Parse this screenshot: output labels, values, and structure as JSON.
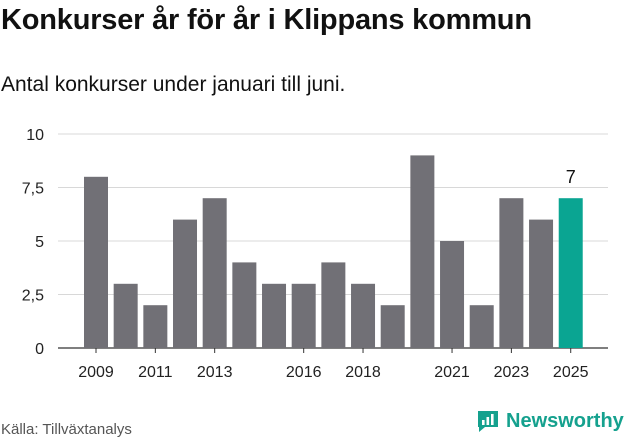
{
  "header": {
    "title": "Konkurser år för år i Klippans kommun",
    "subtitle": "Antal konkurser under januari till juni."
  },
  "footer": {
    "source": "Källa: Tillväxtanalys",
    "brand": "Newsworthy"
  },
  "colors": {
    "bar": "#717076",
    "highlight": "#0aa592",
    "grid": "#d8d8d8",
    "axis": "#333333",
    "brand": "#15a18e"
  },
  "chart_data": {
    "type": "bar",
    "title": "Konkurser år för år i Klippans kommun",
    "subtitle": "Antal konkurser under januari till juni.",
    "categories": [
      "2009",
      "2010",
      "2011",
      "2012",
      "2013",
      "2014",
      "2015",
      "2016",
      "2017",
      "2018",
      "2019",
      "2020",
      "2021",
      "2022",
      "2023",
      "2024",
      "2025"
    ],
    "values": [
      8,
      3,
      2,
      6,
      7,
      4,
      3,
      3,
      4,
      3,
      2,
      9,
      5,
      2,
      7,
      6,
      7
    ],
    "tick_labels_x": [
      "2009",
      "2011",
      "2013",
      "2016",
      "2018",
      "2021",
      "2023",
      "2025"
    ],
    "tick_labels_y": [
      "0",
      "2,5",
      "5",
      "7,5",
      "10"
    ],
    "ylim": [
      0,
      10
    ],
    "highlight_category": "2025",
    "data_labels": [
      {
        "category": "2025",
        "text": "7"
      }
    ],
    "grid": true,
    "legend": "none"
  }
}
